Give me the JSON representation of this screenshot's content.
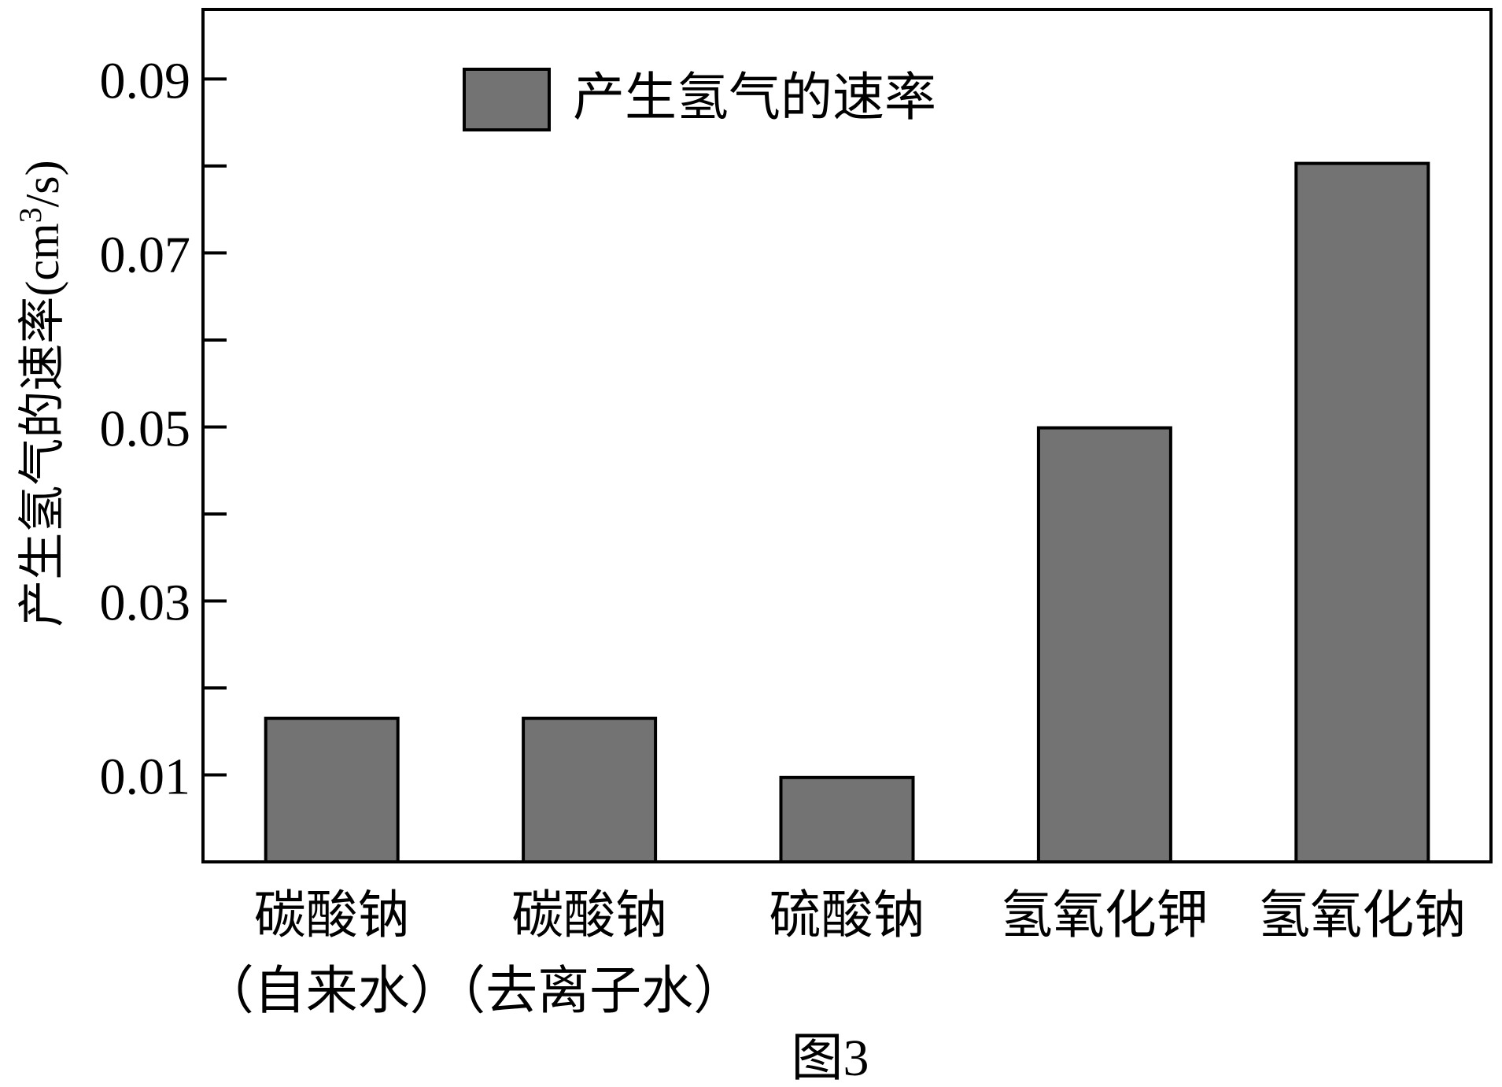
{
  "chart_data": {
    "type": "bar",
    "categories": [
      [
        "碳酸钠",
        "（自来水）"
      ],
      [
        "碳酸钠",
        "（去离子水）"
      ],
      [
        "硫酸钠",
        ""
      ],
      [
        "氢氧化钾",
        ""
      ],
      [
        "氢氧化钠",
        ""
      ]
    ],
    "series": [
      {
        "name": "产生氢气的速率",
        "values": [
          0.0165,
          0.0165,
          0.0097,
          0.0499,
          0.0803
        ],
        "color": "#737373"
      }
    ],
    "ylabel_main": "产生氢气的速率(cm",
    "ylabel_sup": "3",
    "ylabel_tail": "/s)",
    "ylim": [
      0,
      0.098
    ],
    "yticks_labeled": [
      0.01,
      0.03,
      0.05,
      0.07,
      0.09
    ],
    "yticks_labels": [
      "0.01",
      "0.03",
      "0.05",
      "0.07",
      "0.09"
    ],
    "yticks_minor": [
      0.02,
      0.04,
      0.06,
      0.08
    ],
    "grid": false,
    "legend_position": "top-left",
    "caption": "图3"
  }
}
